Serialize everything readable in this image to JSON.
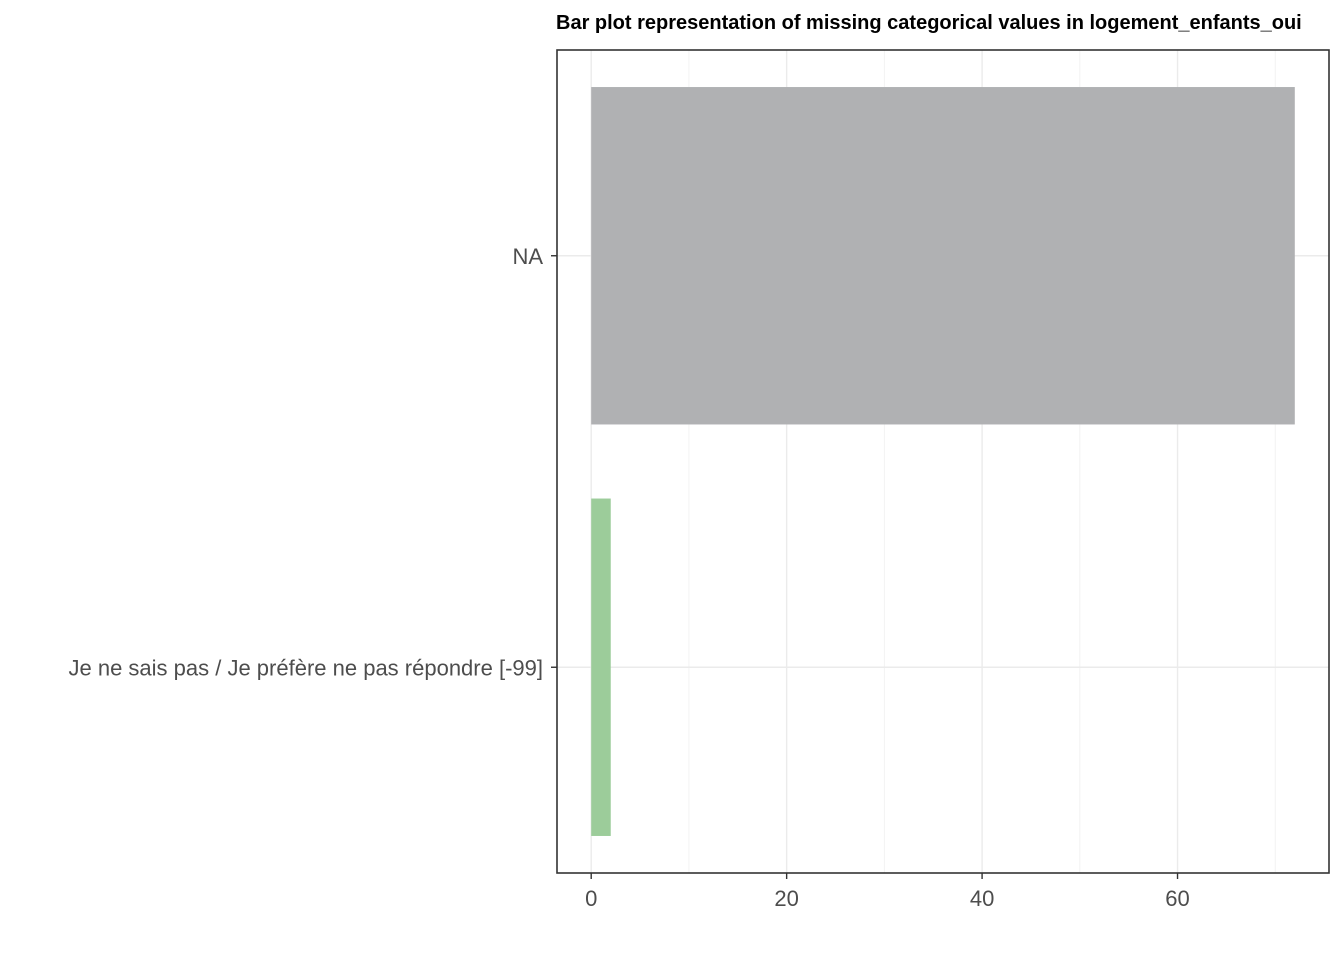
{
  "chart_data": {
    "type": "bar",
    "orientation": "horizontal",
    "title": "Bar plot representation of missing categorical values in logement_enfants_oui",
    "xlabel": "",
    "ylabel": "",
    "categories": [
      "NA",
      "Je ne sais pas / Je préfère ne pas répondre [-99]"
    ],
    "values": [
      72,
      2
    ],
    "bar_colors": [
      "#b0b1b3",
      "#9ccc9a"
    ],
    "xlim": [
      -3.5,
      75.5
    ],
    "x_ticks": [
      0,
      20,
      40,
      60
    ],
    "x_tick_labels": [
      "0",
      "20",
      "40",
      "60"
    ],
    "grid": true,
    "legend": "none"
  }
}
